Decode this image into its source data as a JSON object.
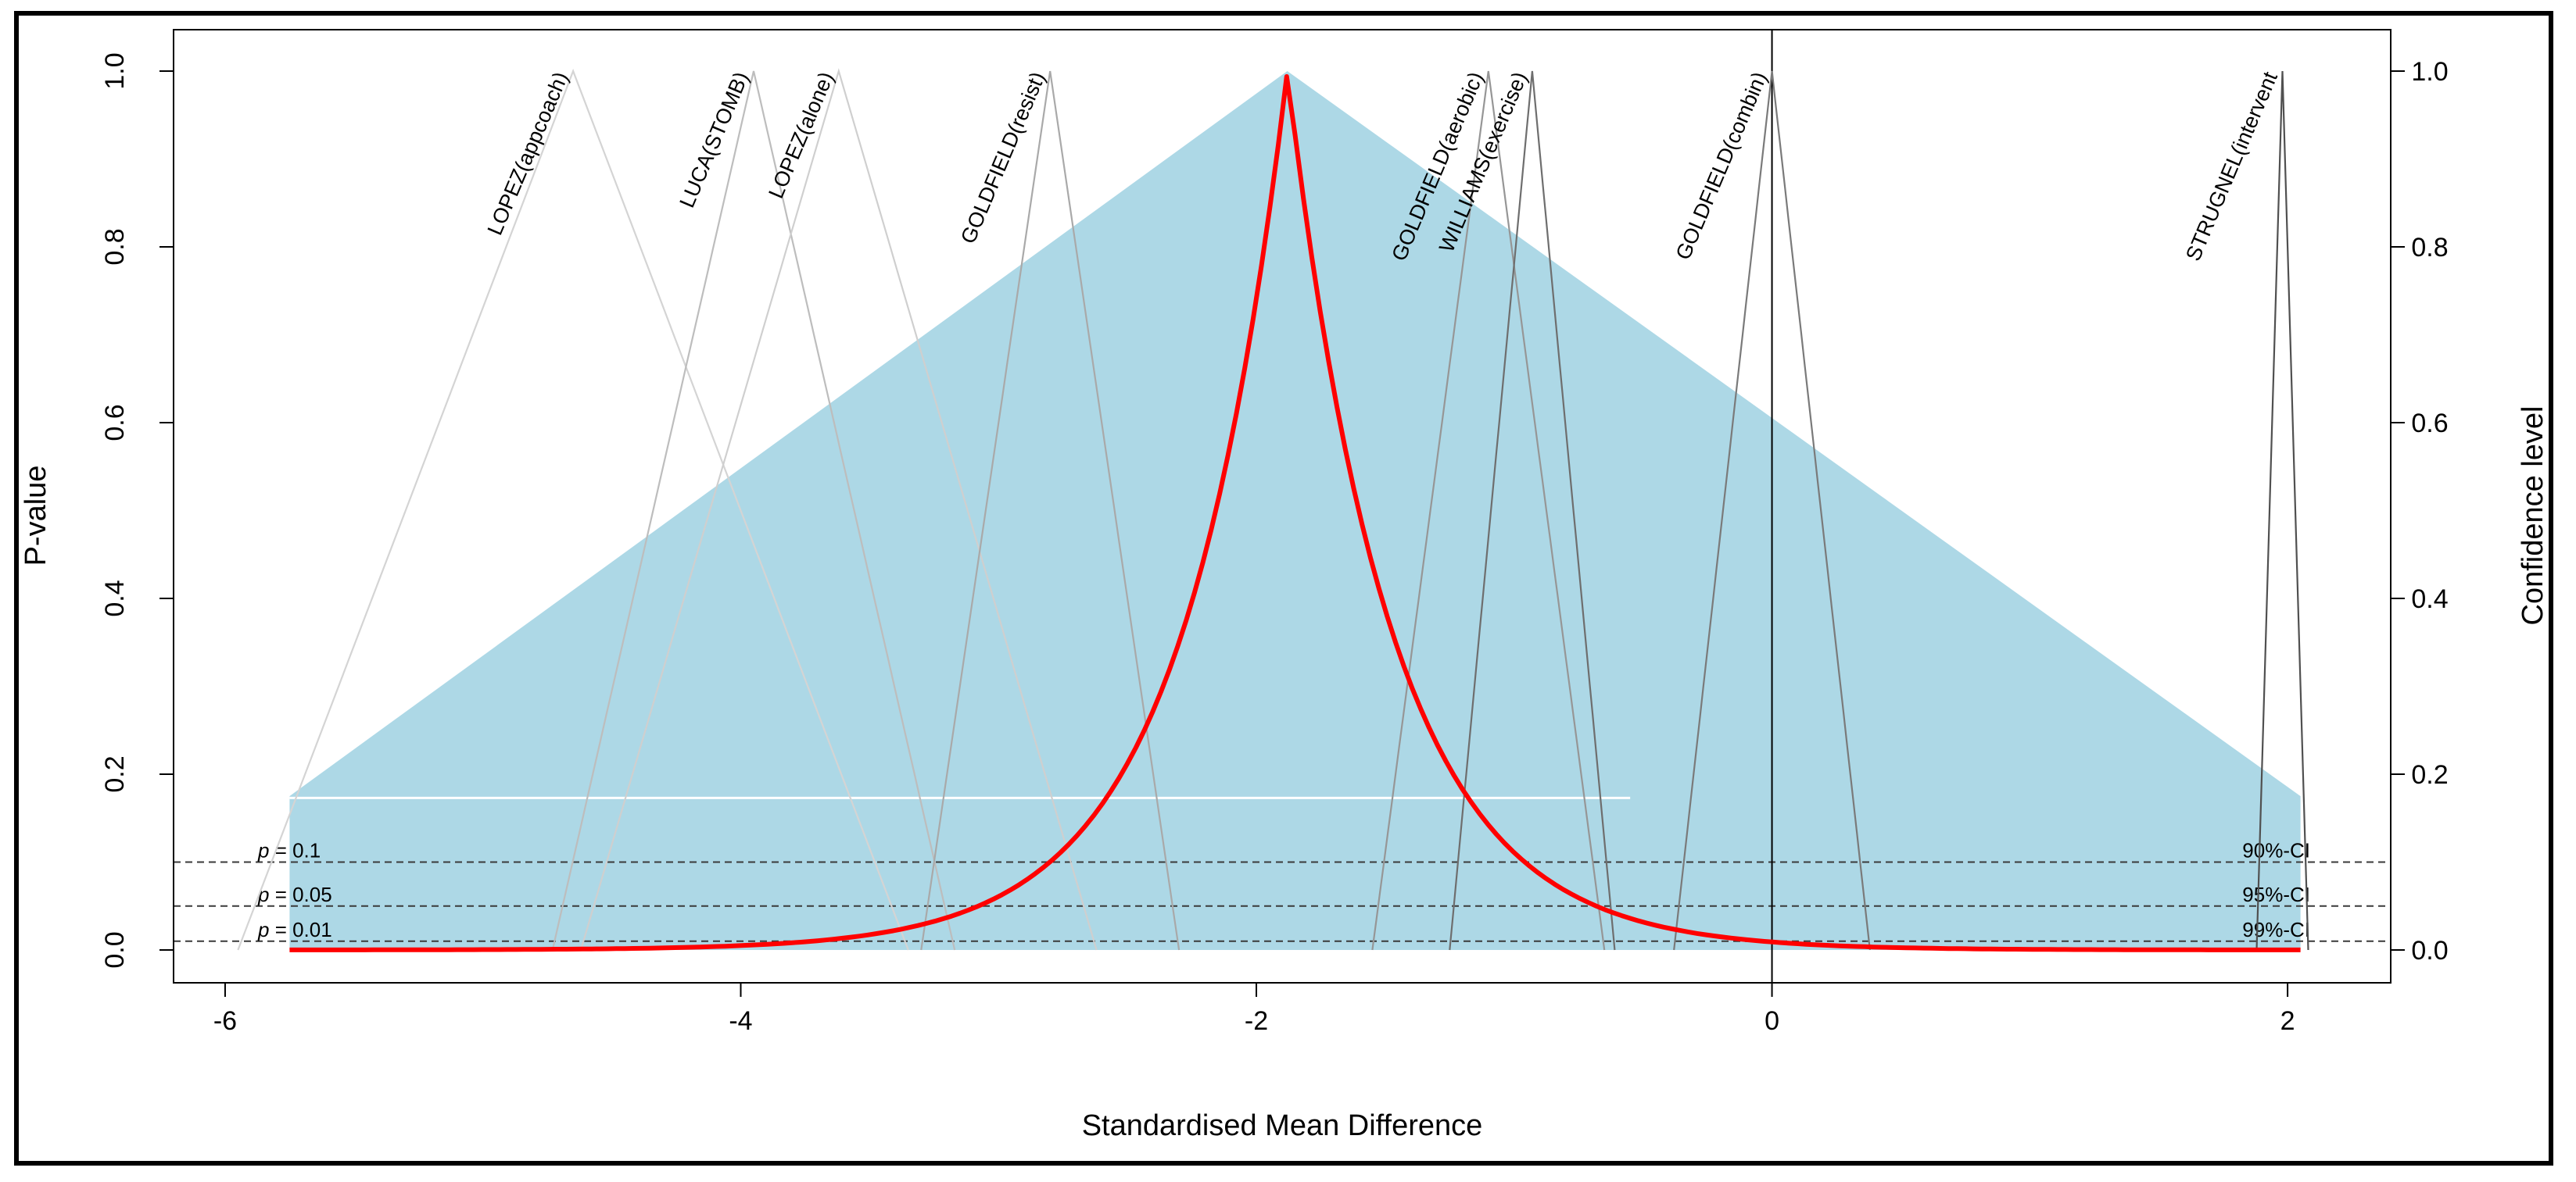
{
  "chart_data": {
    "type": "line",
    "title": "",
    "xlabel": "Standardised Mean Difference",
    "ylabel": "P-value",
    "ylabel_right": "Confidence level",
    "xlim": [
      -6.2,
      2.4
    ],
    "ylim": [
      0,
      1
    ],
    "x_ticks": [
      -6,
      -4,
      -2,
      0,
      2
    ],
    "x_tick_labels": [
      "-6",
      "-4",
      "-2",
      "0",
      "2"
    ],
    "y_ticks": [
      0.0,
      0.2,
      0.4,
      0.6,
      0.8,
      1.0
    ],
    "y_tick_labels": [
      "0.0",
      "0.2",
      "0.4",
      "0.6",
      "0.8",
      "1.0"
    ],
    "y_right_tick_labels": [
      "1.0",
      "0.8",
      "0.6",
      "0.4",
      "0.2",
      "0.0"
    ],
    "null_line_x": 0,
    "reference_lines": [
      {
        "p": 0.1,
        "label_left": "= 0.1",
        "label_right": "90%-CI"
      },
      {
        "p": 0.05,
        "label_left": "= 0.05",
        "label_right": "95%-CI"
      },
      {
        "p": 0.01,
        "label_left": "= 0.01",
        "label_right": "99%-CI"
      }
    ],
    "p_symbol": "p",
    "prediction_region": {
      "x_min": -5.75,
      "x_max": 2.05,
      "peak_x": -1.88,
      "edge_y": 0.175,
      "color": "#add8e6"
    },
    "prediction_interval_line": {
      "x_from": -5.75,
      "x_to": -0.55,
      "y": 0.173,
      "color": "#ffffff"
    },
    "pooled_curve": {
      "peak_x": -1.88,
      "rate": 2.5,
      "color": "#ff0000"
    },
    "studies": [
      {
        "name": "LOPEZ(appcoach)",
        "peak_x": -4.65,
        "halfwidth": 1.3,
        "color": "#d4d4d4"
      },
      {
        "name": "LUCA(STOMB)",
        "peak_x": -3.95,
        "halfwidth": 0.78,
        "color": "#bdbdbd"
      },
      {
        "name": "LOPEZ(alone)",
        "peak_x": -3.62,
        "halfwidth": 1.0,
        "color": "#cfcfcf"
      },
      {
        "name": "GOLDFIELD(resist)",
        "peak_x": -2.8,
        "halfwidth": 0.5,
        "color": "#a9a9a9"
      },
      {
        "name": "GOLDFIELD(aerobic)",
        "peak_x": -1.1,
        "halfwidth": 0.45,
        "color": "#969696"
      },
      {
        "name": "WILLIAMS(exercise)",
        "peak_x": -0.93,
        "halfwidth": 0.32,
        "color": "#6e6e6e"
      },
      {
        "name": "GOLDFIELD(combin)",
        "peak_x": 0.0,
        "halfwidth": 0.38,
        "color": "#7a7a7a"
      },
      {
        "name": "STRUGNEL(intervent",
        "peak_x": 1.98,
        "halfwidth": 0.1,
        "color": "#505050"
      }
    ]
  }
}
